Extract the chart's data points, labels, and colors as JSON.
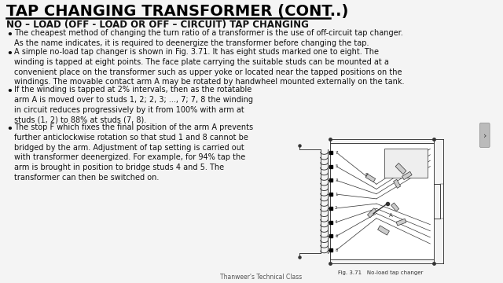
{
  "title": "TAP CHANGING TRANSFORMER (CONT..)",
  "subtitle": "NO – LOAD (OFF - LOAD OR OFF – CIRCUIT) TAP CHANGING",
  "bullet1": "The cheapest method of changing the turn ratio of a transformer is the use of off-circuit tap changer.\nAs the name indicates, it is required to deenergize the transformer before changing the tap.",
  "bullet2": "A simple no-load tap changer is shown in Fig. 3.71. It has eight studs marked one to eight. The\nwinding is tapped at eight points. The face plate carrying the suitable studs can be mounted at a\nconvenient place on the transformer such as upper yoke or located near the tapped positions on the\nwindings. The movable contact arm A may be rotated by handwheel mounted externally on the tank.",
  "bullet3": "If the winding is tapped at 2% intervals, then as the rotatable\narm A is moved over to studs 1, 2; 2, 3; ..., 7; 7, 8 the winding\nin circuit reduces progressively by it from 100% with arm at\nstuds (1, 2) to 88% at studs (7, 8).",
  "bullet4": "The stop F which fixes the final position of the arm A prevents\nfurther anticlockwise rotation so that stud 1 and 8 cannot be\nbridged by the arm. Adjustment of tap setting is carried out\nwith transformer deenergized. For example, for 94% tap the\narm is brought in position to bridge studs 4 and 5. The\ntransformer can then be switched on.",
  "footer_left": "Thanweer's Technical Class",
  "fig_caption": "Fig. 3.71   No-load tap changer",
  "bg_color": "#f4f4f4",
  "title_color": "#000000",
  "text_color": "#111111",
  "title_fontsize": 14,
  "subtitle_fontsize": 8.5,
  "body_fontsize": 7.0
}
